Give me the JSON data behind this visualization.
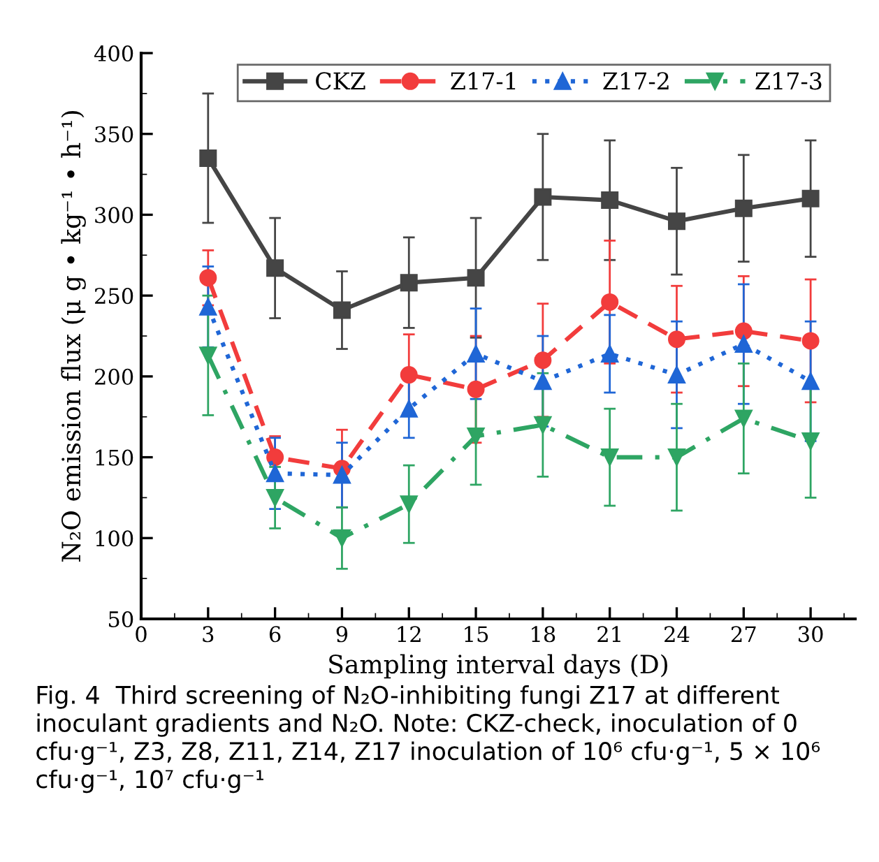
{
  "chart_data": {
    "type": "line",
    "xlabel": "Sampling interval days (D)",
    "ylabel": "N₂O emission flux (μ g • kg⁻¹ • h⁻¹)",
    "x": [
      3,
      6,
      9,
      12,
      15,
      18,
      21,
      24,
      27,
      30
    ],
    "xlim": [
      0,
      32
    ],
    "xticks": [
      0,
      3,
      6,
      9,
      12,
      15,
      18,
      21,
      24,
      27,
      30
    ],
    "ylim": [
      50,
      400
    ],
    "yticks": [
      50,
      100,
      150,
      200,
      250,
      300,
      350,
      400
    ],
    "grid": false,
    "legend": "top",
    "series": [
      {
        "name": "CKZ",
        "color": "#454545",
        "marker": "square",
        "line_style": "solid",
        "values": [
          335,
          267,
          241,
          258,
          261,
          311,
          309,
          296,
          304,
          310
        ],
        "errors": [
          40,
          31,
          24,
          28,
          37,
          39,
          37,
          33,
          33,
          36
        ]
      },
      {
        "name": "Z17-1",
        "color": "#f23c3c",
        "marker": "circle",
        "line_style": "dashed",
        "values": [
          261,
          150,
          143,
          201,
          192,
          210,
          246,
          223,
          228,
          222
        ],
        "errors": [
          17,
          13,
          24,
          25,
          33,
          35,
          38,
          33,
          34,
          38
        ]
      },
      {
        "name": "Z17-2",
        "color": "#1f66d6",
        "marker": "triangle",
        "line_style": "dotted",
        "values": [
          243,
          140,
          139,
          180,
          214,
          197,
          214,
          201,
          220,
          197
        ],
        "errors": [
          25,
          22,
          20,
          18,
          28,
          28,
          24,
          33,
          37,
          37
        ]
      },
      {
        "name": "Z17-3",
        "color": "#2ea563",
        "marker": "triangle_down",
        "line_style": "dashdot",
        "values": [
          213,
          125,
          100,
          121,
          163,
          170,
          150,
          150,
          174,
          160
        ],
        "errors": [
          37,
          19,
          19,
          24,
          30,
          32,
          30,
          33,
          34,
          35
        ]
      }
    ],
    "annotations": [
      "Fig. 4  Third screening of N₂O-inhibiting fungi Z17 at different inoculant gradients and N₂O. Note: CKZ-check, inoculation of 0 cfu·g⁻¹, Z3, Z8, Z11, Z14, Z17 inoculation of 10⁶ cfu·g⁻¹, 5 × 10⁶ cfu·g⁻¹, 10⁷ cfu·g⁻¹"
    ]
  }
}
